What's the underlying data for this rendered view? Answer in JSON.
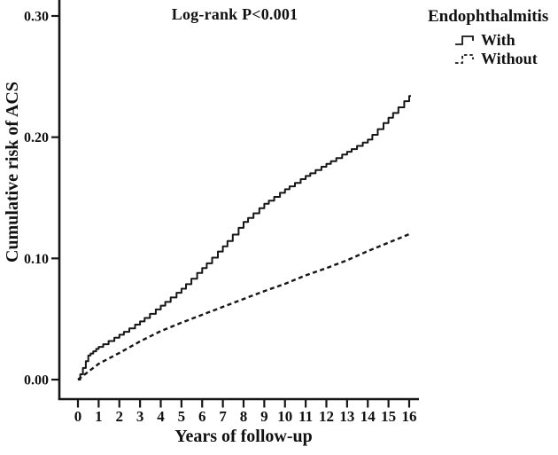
{
  "chart_data": {
    "type": "line",
    "subtype": "cumulative-incidence-step-curves",
    "title": "Log-rank P<0.001",
    "xlabel": "Years of follow-up",
    "ylabel": "Cumulative risk of ACS",
    "xlim": [
      0,
      16
    ],
    "ylim": [
      0.0,
      0.3
    ],
    "grid": false,
    "xticks": [
      0,
      1,
      2,
      3,
      4,
      5,
      6,
      7,
      8,
      9,
      10,
      11,
      12,
      13,
      14,
      15,
      16
    ],
    "yticks": [
      0.0,
      0.1,
      0.2,
      0.3
    ],
    "ytick_labels": [
      "0.00",
      "0.10",
      "0.20",
      "0.30"
    ],
    "legend_title": "Endophthalmitis",
    "legend_position": "top-right-outside",
    "line_color": "#161616",
    "x": [
      0,
      0.5,
      1,
      2,
      3,
      4,
      5,
      6,
      7,
      8,
      9,
      10,
      11,
      12,
      13,
      14,
      15,
      16
    ],
    "series": [
      {
        "name": "With",
        "style": "solid",
        "values": [
          0,
          0.02,
          0.027,
          0.037,
          0.048,
          0.061,
          0.075,
          0.092,
          0.11,
          0.13,
          0.145,
          0.157,
          0.168,
          0.178,
          0.188,
          0.198,
          0.216,
          0.234
        ]
      },
      {
        "name": "Without",
        "style": "dashed",
        "values": [
          0,
          0.0065,
          0.013,
          0.022,
          0.0315,
          0.04,
          0.047,
          0.0535,
          0.06,
          0.0665,
          0.073,
          0.079,
          0.086,
          0.092,
          0.0985,
          0.106,
          0.113,
          0.12
        ]
      }
    ]
  }
}
